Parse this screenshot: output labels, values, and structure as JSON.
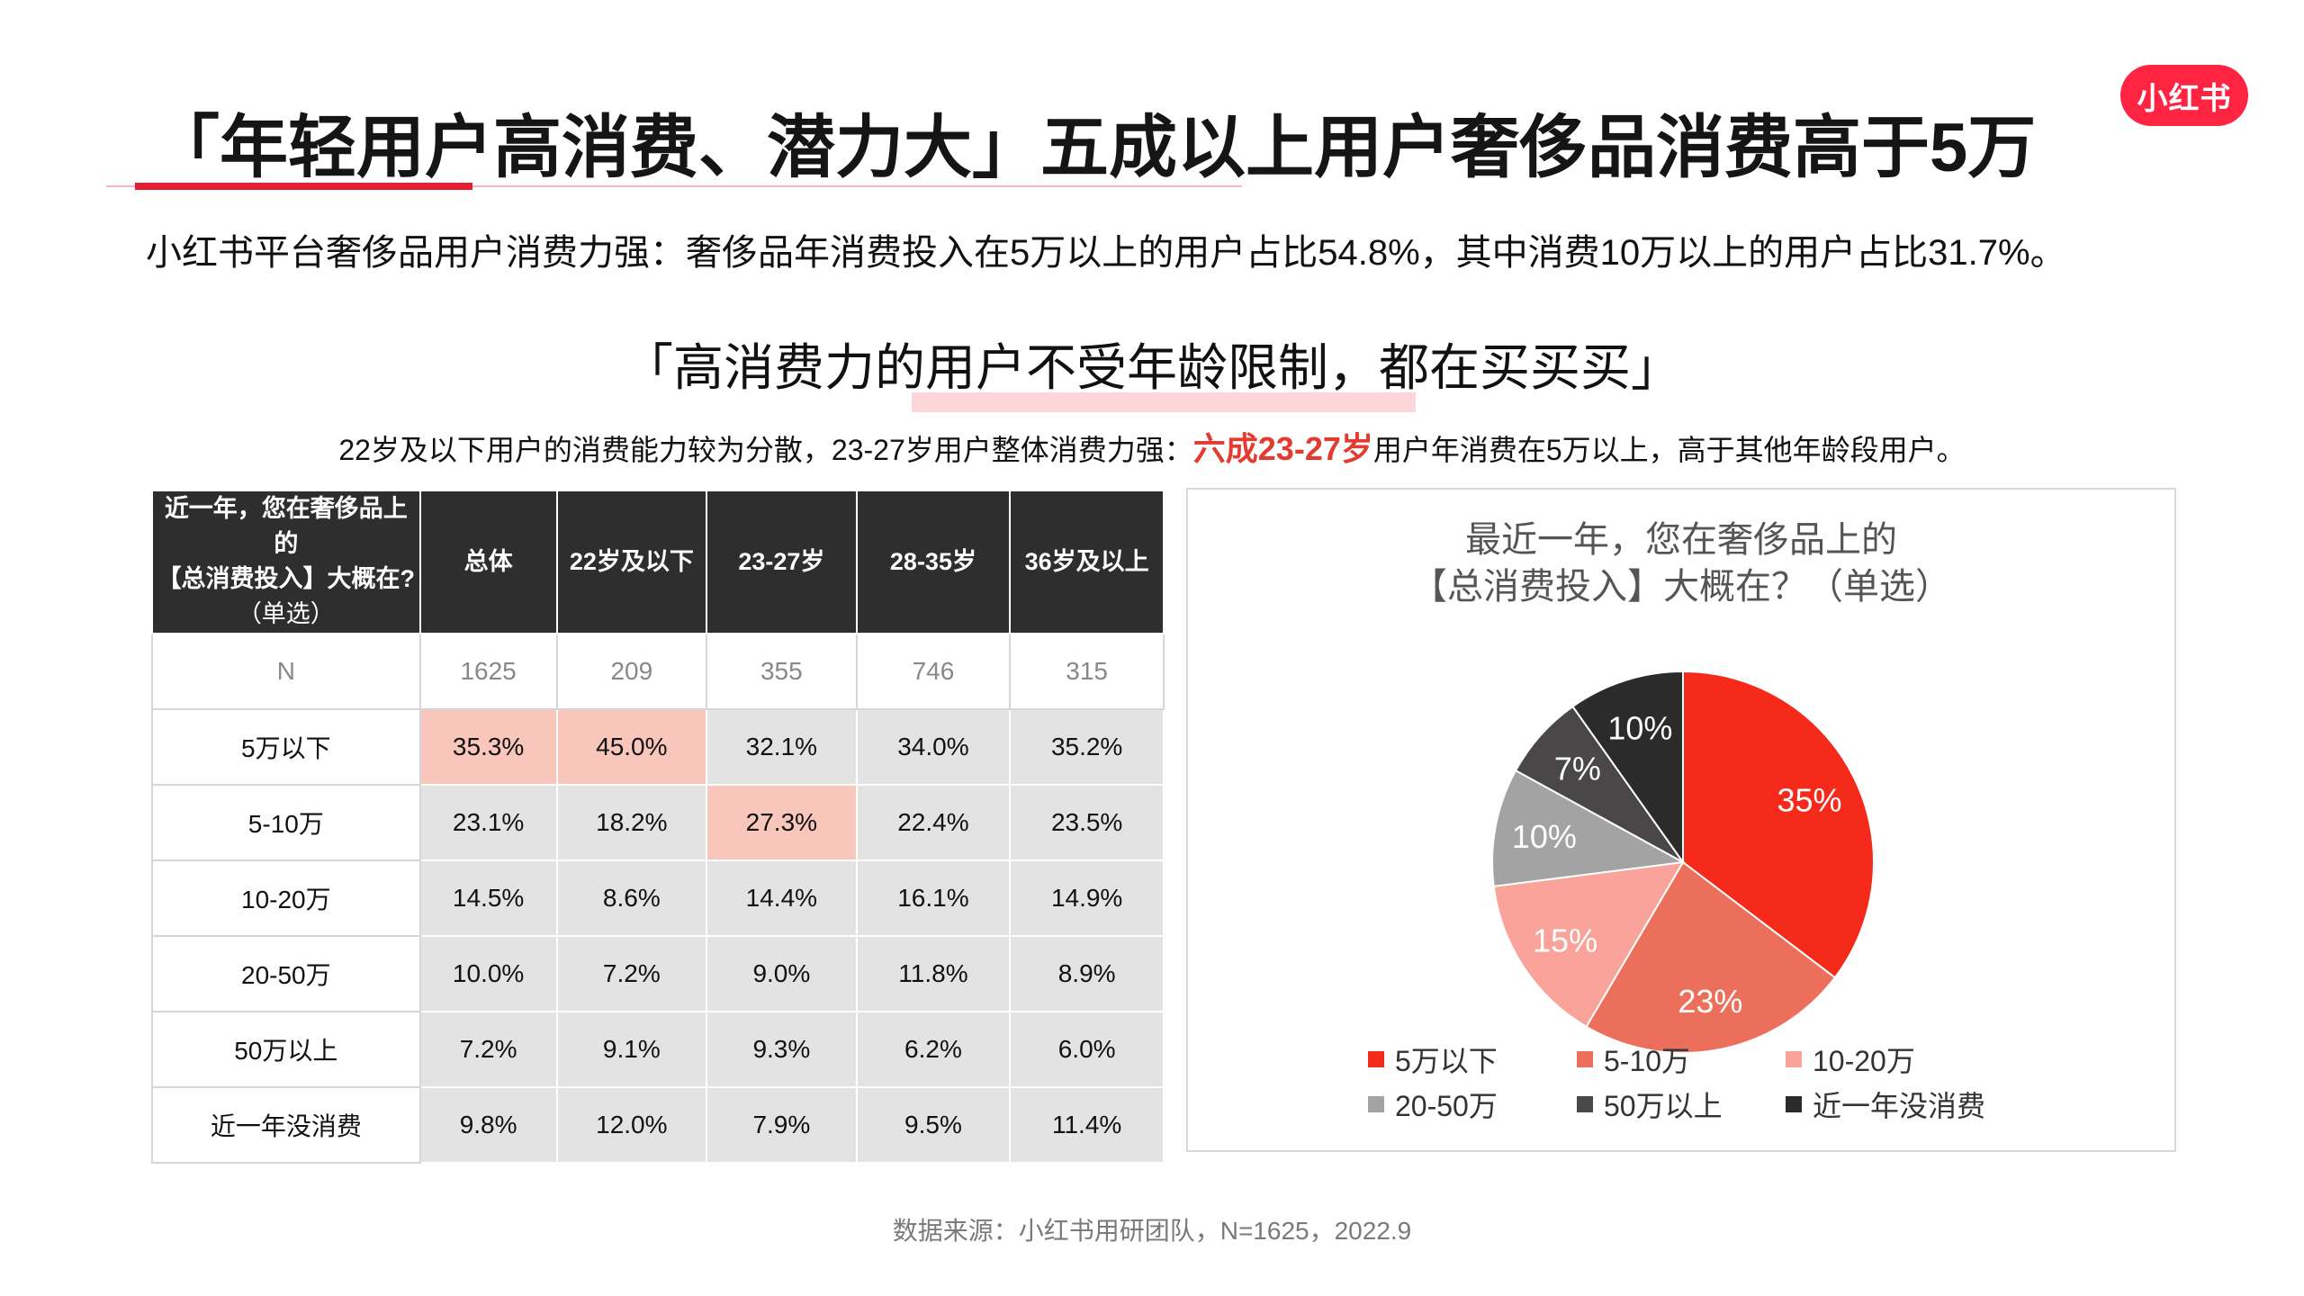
{
  "logo_text": "小红书",
  "title": "「年轻用户高消费、潜力大」五成以上用户奢侈品消费高于5万",
  "summary": "小红书平台奢侈品用户消费力强：奢侈品年消费投入在5万以上的用户占比54.8%，其中消费10万以上的用户占比31.7%。",
  "subheadline": "「高消费力的用户不受年龄限制，都在买买买」",
  "note": {
    "before": "22岁及以下用户的消费能力较为分散，23-27岁用户整体消费力强：",
    "highlight": "六成23-27岁",
    "after": "用户年消费在5万以上，高于其他年龄段用户。"
  },
  "table": {
    "header": {
      "question_line1": "近一年，您在奢侈品上的",
      "question_line2": "【总消费投入】大概在?",
      "question_line3": "（单选）",
      "columns": [
        "总体",
        "22岁及以下",
        "23-27岁",
        "28-35岁",
        "36岁及以上"
      ]
    },
    "rows": [
      {
        "label": "N",
        "cells": [
          "1625",
          "209",
          "355",
          "746",
          "315"
        ]
      },
      {
        "label": "5万以下",
        "cells": [
          "35.3%",
          "45.0%",
          "32.1%",
          "34.0%",
          "35.2%"
        ]
      },
      {
        "label": "5-10万",
        "cells": [
          "23.1%",
          "18.2%",
          "27.3%",
          "22.4%",
          "23.5%"
        ]
      },
      {
        "label": "10-20万",
        "cells": [
          "14.5%",
          "8.6%",
          "14.4%",
          "16.1%",
          "14.9%"
        ]
      },
      {
        "label": "20-50万",
        "cells": [
          "10.0%",
          "7.2%",
          "9.0%",
          "11.8%",
          "8.9%"
        ]
      },
      {
        "label": "50万以上",
        "cells": [
          "7.2%",
          "9.1%",
          "9.3%",
          "6.2%",
          "6.0%"
        ]
      },
      {
        "label": "近一年没消费",
        "cells": [
          "9.8%",
          "12.0%",
          "7.9%",
          "9.5%",
          "11.4%"
        ]
      }
    ]
  },
  "chart_data": {
    "type": "pie",
    "title_line1": "最近一年，您在奢侈品上的",
    "title_line2": "【总消费投入】大概在？（单选）",
    "legend_position": "bottom",
    "categories": [
      "5万以下",
      "5-10万",
      "10-20万",
      "20-50万",
      "50万以上",
      "近一年没消费"
    ],
    "values": [
      35.3,
      23.1,
      14.5,
      10.0,
      7.2,
      9.8
    ],
    "labels": [
      "35%",
      "23%",
      "15%",
      "10%",
      "7%",
      "10%"
    ],
    "colors": [
      "#f52a1a",
      "#ec6f5b",
      "#f9a39a",
      "#a3a3a3",
      "#4a4748",
      "#2b2b2b"
    ],
    "label_colors": [
      "#ffffff",
      "#ffffff",
      "#ffffff",
      "#ffffff",
      "#ffffff",
      "#ffffff"
    ]
  },
  "source": "数据来源：小红书用研团队，N=1625，2022.9"
}
